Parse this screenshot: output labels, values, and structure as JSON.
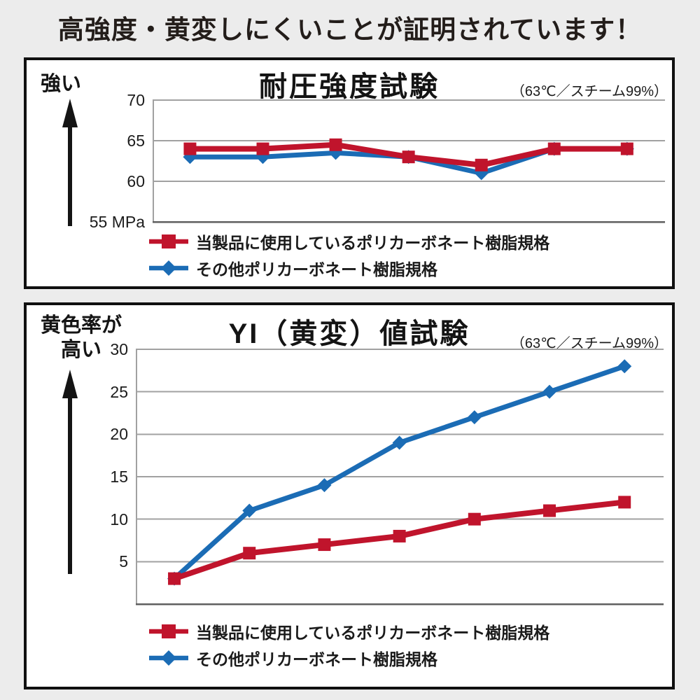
{
  "page": {
    "background": "#ececec",
    "header": "高強度・黄変しにくいことが証明されています！"
  },
  "colors": {
    "panel_border": "#101010",
    "grid_line": "#a1a1a1",
    "axis_line": "#5f5f5f",
    "arrow": "#141414"
  },
  "chart_data": [
    {
      "type": "line",
      "title": "耐圧強度試験",
      "condition": "（63℃／スチーム99%）",
      "y_axis_label": "強い",
      "ylabel": "MPa",
      "ylim": [
        55,
        70
      ],
      "baseline": 55,
      "grid": true,
      "legend_position": "bottom",
      "x_points": 7,
      "x_labels": [],
      "ticks": [
        {
          "value": 70,
          "label": "70"
        },
        {
          "value": 65,
          "label": "65"
        },
        {
          "value": 60,
          "label": "60"
        },
        {
          "value": 55,
          "label": "55 MPa"
        }
      ],
      "series": [
        {
          "name": "当製品に使用しているポリカーボネート樹脂規格",
          "color": "#c0142c",
          "marker": "square",
          "values": [
            64,
            64,
            64.5,
            63,
            62,
            64,
            64
          ]
        },
        {
          "name": "その他ポリカーボネート樹脂規格",
          "color": "#1b6cb5",
          "marker": "diamond",
          "values": [
            63,
            63,
            63.5,
            63,
            61,
            64,
            64
          ]
        }
      ]
    },
    {
      "type": "line",
      "title": "YI（黄変）値試験",
      "condition": "（63℃／スチーム99%）",
      "y_axis_label": "黄色率が高い",
      "y_axis_label_lines": [
        "黄色率が",
        "高い"
      ],
      "ylim": [
        0,
        30
      ],
      "baseline": 0,
      "grid": true,
      "legend_position": "bottom",
      "x_points": 7,
      "x_labels": [],
      "ticks": [
        {
          "value": 30,
          "label": "30"
        },
        {
          "value": 25,
          "label": "25"
        },
        {
          "value": 20,
          "label": "20"
        },
        {
          "value": 15,
          "label": "15"
        },
        {
          "value": 10,
          "label": "10"
        },
        {
          "value": 5,
          "label": "5"
        }
      ],
      "series": [
        {
          "name": "当製品に使用しているポリカーボネート樹脂規格",
          "color": "#c0142c",
          "marker": "square",
          "values": [
            3,
            6,
            7,
            8,
            10,
            11,
            12
          ]
        },
        {
          "name": "その他ポリカーボネート樹脂規格",
          "color": "#1b6cb5",
          "marker": "diamond",
          "values": [
            3,
            11,
            14,
            19,
            22,
            25,
            28
          ]
        }
      ]
    }
  ]
}
